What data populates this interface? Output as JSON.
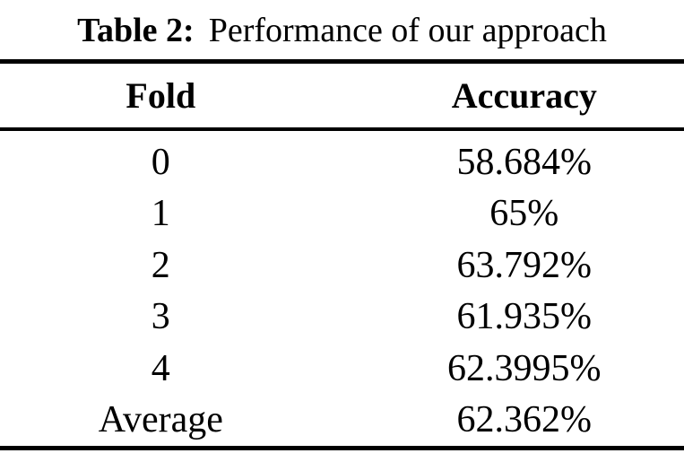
{
  "caption": {
    "label": "Table 2:",
    "text": "Performance of our approach"
  },
  "table": {
    "columns": [
      {
        "label": "Fold"
      },
      {
        "label": "Accuracy"
      }
    ],
    "rows": [
      {
        "fold": "0",
        "accuracy": "58.684%"
      },
      {
        "fold": "1",
        "accuracy": "65%"
      },
      {
        "fold": "2",
        "accuracy": "63.792%"
      },
      {
        "fold": "3",
        "accuracy": "61.935%"
      },
      {
        "fold": "4",
        "accuracy": "62.3995%"
      },
      {
        "fold": "Average",
        "accuracy": "62.362%"
      }
    ]
  },
  "colors": {
    "text": "#000000",
    "background": "#ffffff",
    "rule": "#000000"
  },
  "chart_data": {
    "type": "table",
    "title": "Table 2: Performance of our approach",
    "columns": [
      "Fold",
      "Accuracy"
    ],
    "categories": [
      "0",
      "1",
      "2",
      "3",
      "4",
      "Average"
    ],
    "values_percent": [
      58.684,
      65,
      63.792,
      61.935,
      62.3995,
      62.362
    ],
    "cells": [
      [
        "0",
        "58.684%"
      ],
      [
        "1",
        "65%"
      ],
      [
        "2",
        "63.792%"
      ],
      [
        "3",
        "61.935%"
      ],
      [
        "4",
        "62.3995%"
      ],
      [
        "Average",
        "62.362%"
      ]
    ]
  }
}
